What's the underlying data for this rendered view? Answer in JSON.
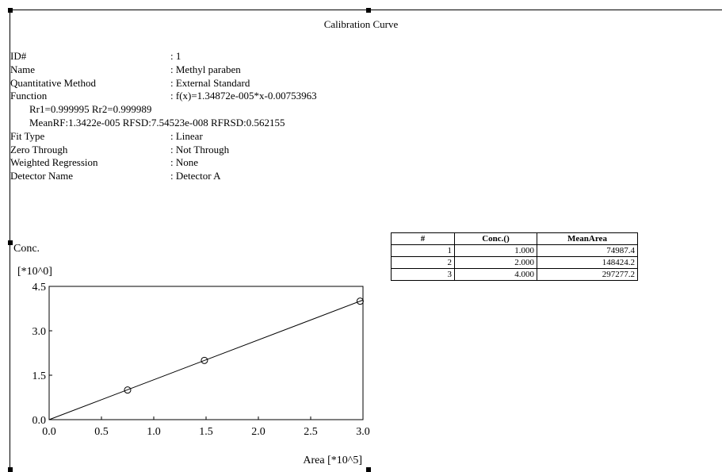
{
  "title": "Calibration Curve",
  "info": [
    {
      "key": "ID#",
      "value": ": 1"
    },
    {
      "key": "Name",
      "value": ": Methyl paraben"
    },
    {
      "key": "Quantitative Method",
      "value": ": External Standard"
    },
    {
      "key": "Function",
      "value": ": f(x)=1.34872e-005*x-0.00753963"
    }
  ],
  "stats": {
    "line1": "Rr1=0.999995   Rr2=0.999989",
    "line2": "MeanRF:1.3422e-005   RFSD:7.54523e-008   RFRSD:0.562155"
  },
  "info2": [
    {
      "key": "Fit Type",
      "value": ": Linear"
    },
    {
      "key": "Zero Through",
      "value": ": Not Through"
    },
    {
      "key": "Weighted Regression",
      "value": ": None"
    },
    {
      "key": "Detector Name",
      "value": ": Detector A"
    }
  ],
  "table": {
    "headers": [
      "#",
      "Conc.()",
      "MeanArea"
    ],
    "rows": [
      [
        "1",
        "1.000",
        "74987.4"
      ],
      [
        "2",
        "2.000",
        "148424.2"
      ],
      [
        "3",
        "4.000",
        "297277.2"
      ]
    ]
  },
  "chart_data": {
    "type": "scatter",
    "ylabel": "Conc.",
    "yscale_label": "[*10^0]",
    "xlabel": "Area [*10^5]",
    "xlim": [
      0.0,
      3.0
    ],
    "ylim": [
      0.0,
      4.5
    ],
    "xticks": [
      "0.0",
      "0.5",
      "1.0",
      "1.5",
      "2.0",
      "2.5",
      "3.0"
    ],
    "yticks": [
      "0.0",
      "1.5",
      "3.0",
      "4.5"
    ],
    "points": [
      {
        "x": 0.749874,
        "y": 1.0
      },
      {
        "x": 1.484242,
        "y": 2.0
      },
      {
        "x": 2.972772,
        "y": 4.0
      }
    ],
    "fit": {
      "slope": 1.34872,
      "intercept": -0.00753963
    },
    "grid": false
  }
}
